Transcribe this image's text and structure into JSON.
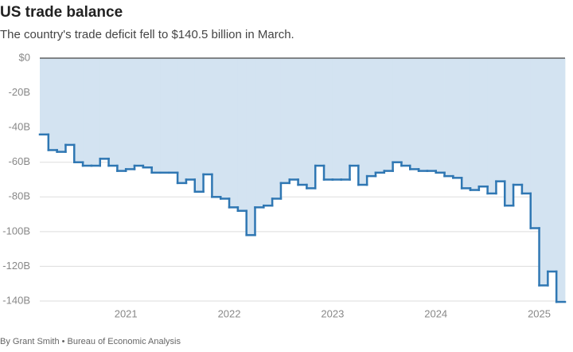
{
  "chart_data": {
    "type": "step-area",
    "title": "US trade balance",
    "subtitle": "The country's trade deficit fell to $140.5 billion in March.",
    "source": "By Grant Smith • Bureau of Economic Analysis",
    "x": [
      2020.1667,
      2020.25,
      2020.3333,
      2020.4167,
      2020.5,
      2020.5833,
      2020.6667,
      2020.75,
      2020.8333,
      2020.9167,
      2021,
      2021.0833,
      2021.1667,
      2021.25,
      2021.3333,
      2021.4167,
      2021.5,
      2021.5833,
      2021.6667,
      2021.75,
      2021.8333,
      2021.9167,
      2022,
      2022.0833,
      2022.1667,
      2022.25,
      2022.3333,
      2022.4167,
      2022.5,
      2022.5833,
      2022.6667,
      2022.75,
      2022.8333,
      2022.9167,
      2023,
      2023.0833,
      2023.1667,
      2023.25,
      2023.3333,
      2023.4167,
      2023.5,
      2023.5833,
      2023.6667,
      2023.75,
      2023.8333,
      2023.9167,
      2024,
      2024.0833,
      2024.1667,
      2024.25,
      2024.3333,
      2024.4167,
      2024.5,
      2024.5833,
      2024.6667,
      2024.75,
      2024.8333,
      2024.9167,
      2025,
      2025.0833,
      2025.1667
    ],
    "values": [
      -44,
      -53,
      -54,
      -50,
      -60,
      -62,
      -62,
      -58,
      -62,
      -65,
      -64,
      -62,
      -63,
      -66,
      -66,
      -66,
      -72,
      -70,
      -77,
      -67,
      -80,
      -81,
      -86,
      -88,
      -102,
      -86,
      -85,
      -81,
      -72,
      -70,
      -73,
      -75,
      -62,
      -70,
      -70,
      -70,
      -62,
      -73,
      -68,
      -66,
      -65,
      -60,
      -62,
      -64,
      -65,
      -65,
      -66,
      -68,
      -69,
      -75,
      -76,
      -74,
      -78,
      -71,
      -85,
      -73,
      -78,
      -98,
      -131,
      -123,
      -140.5
    ],
    "line_color": "#2f77b3",
    "fill_color": "#d3e3f1",
    "xlim": [
      2020.1667,
      2025.25
    ],
    "xticks": [
      2021,
      2022,
      2023,
      2024,
      2025
    ],
    "ylim": [
      -140,
      0
    ],
    "yticks": [
      {
        "value": 0,
        "label": "$0"
      },
      {
        "value": -20,
        "label": "-20B"
      },
      {
        "value": -40,
        "label": "-40B"
      },
      {
        "value": -60,
        "label": "-60B"
      },
      {
        "value": -80,
        "label": "-80B"
      },
      {
        "value": -100,
        "label": "-100B"
      },
      {
        "value": -120,
        "label": "-120B"
      },
      {
        "value": -140,
        "label": "-140B"
      }
    ],
    "grid": true
  }
}
